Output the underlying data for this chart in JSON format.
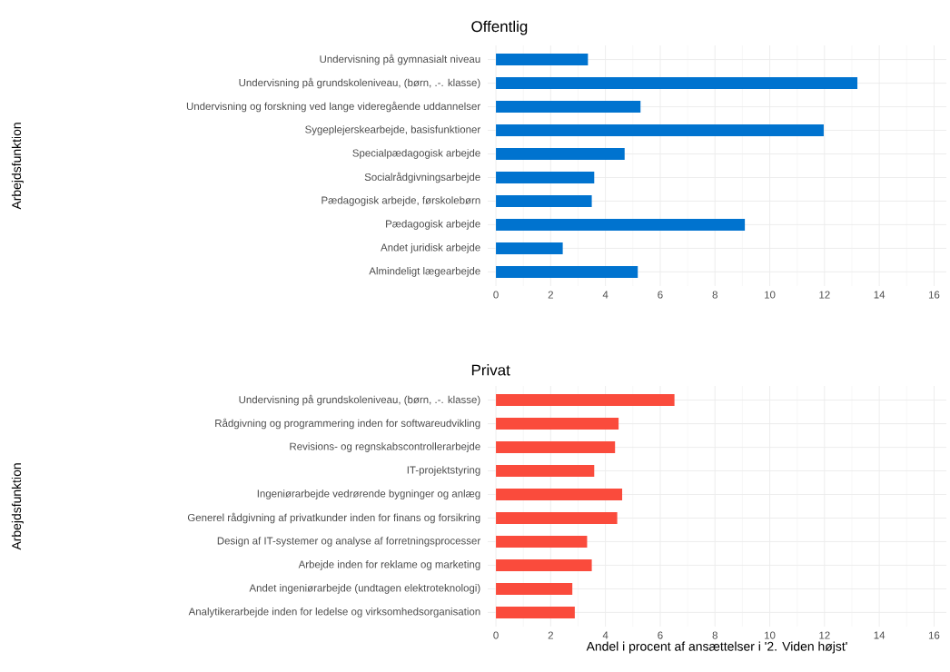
{
  "chart_data": [
    {
      "type": "bar",
      "orientation": "horizontal",
      "title": "Offentlig",
      "ylabel": "Arbejdsfunktion",
      "categories": [
        "Undervisning på gymnasialt niveau",
        "Undervisning på grundskoleniveau, (børn, .-. klasse)",
        "Undervisning og forskning ved lange videregående uddannelser",
        "Sygeplejerskearbejde, basisfunktioner",
        "Specialpædagogisk arbejde",
        "Socialrådgivningsarbejde",
        "Pædagogisk arbejde, førskolebørn",
        "Pædagogisk arbejde",
        "Andet juridisk arbejde",
        "Almindeligt lægearbejde"
      ],
      "values": [
        3.36,
        13.2,
        5.28,
        11.97,
        4.7,
        3.59,
        3.5,
        9.09,
        2.44,
        5.18
      ],
      "color": "#0073cf",
      "xlim": [
        -0.3,
        16.45
      ],
      "xticks": [
        0,
        2,
        4,
        6,
        8,
        10,
        12,
        14,
        16
      ],
      "grid": true
    },
    {
      "type": "bar",
      "orientation": "horizontal",
      "title": "Privat",
      "ylabel": "Arbejdsfunktion",
      "xlabel": "Andel i procent af ansættelser i '2. Viden højst'",
      "categories": [
        "Undervisning på grundskoleniveau, (børn, .-. klasse)",
        "Rådgivning og programmering inden for softwareudvikling",
        "Revisions- og regnskabscontrollerarbejde",
        "IT-projektstyring",
        "Ingeniørarbejde vedrørende bygninger og anlæg",
        "Generel rådgivning af privatkunder inden for finans og forsikring",
        "Design af IT-systemer og analyse af forretningsprocesser",
        "Arbejde inden for reklame og marketing",
        "Andet ingeniørarbejde (undtagen elektroteknologi)",
        "Analytikerarbejde inden for ledelse og virksomhedsorganisation"
      ],
      "values": [
        6.52,
        4.48,
        4.35,
        3.59,
        4.61,
        4.43,
        3.33,
        3.5,
        2.79,
        2.88
      ],
      "color": "#fa4b3c",
      "xlim": [
        -0.3,
        16.45
      ],
      "xticks": [
        0,
        2,
        4,
        6,
        8,
        10,
        12,
        14,
        16
      ],
      "grid": true
    }
  ]
}
